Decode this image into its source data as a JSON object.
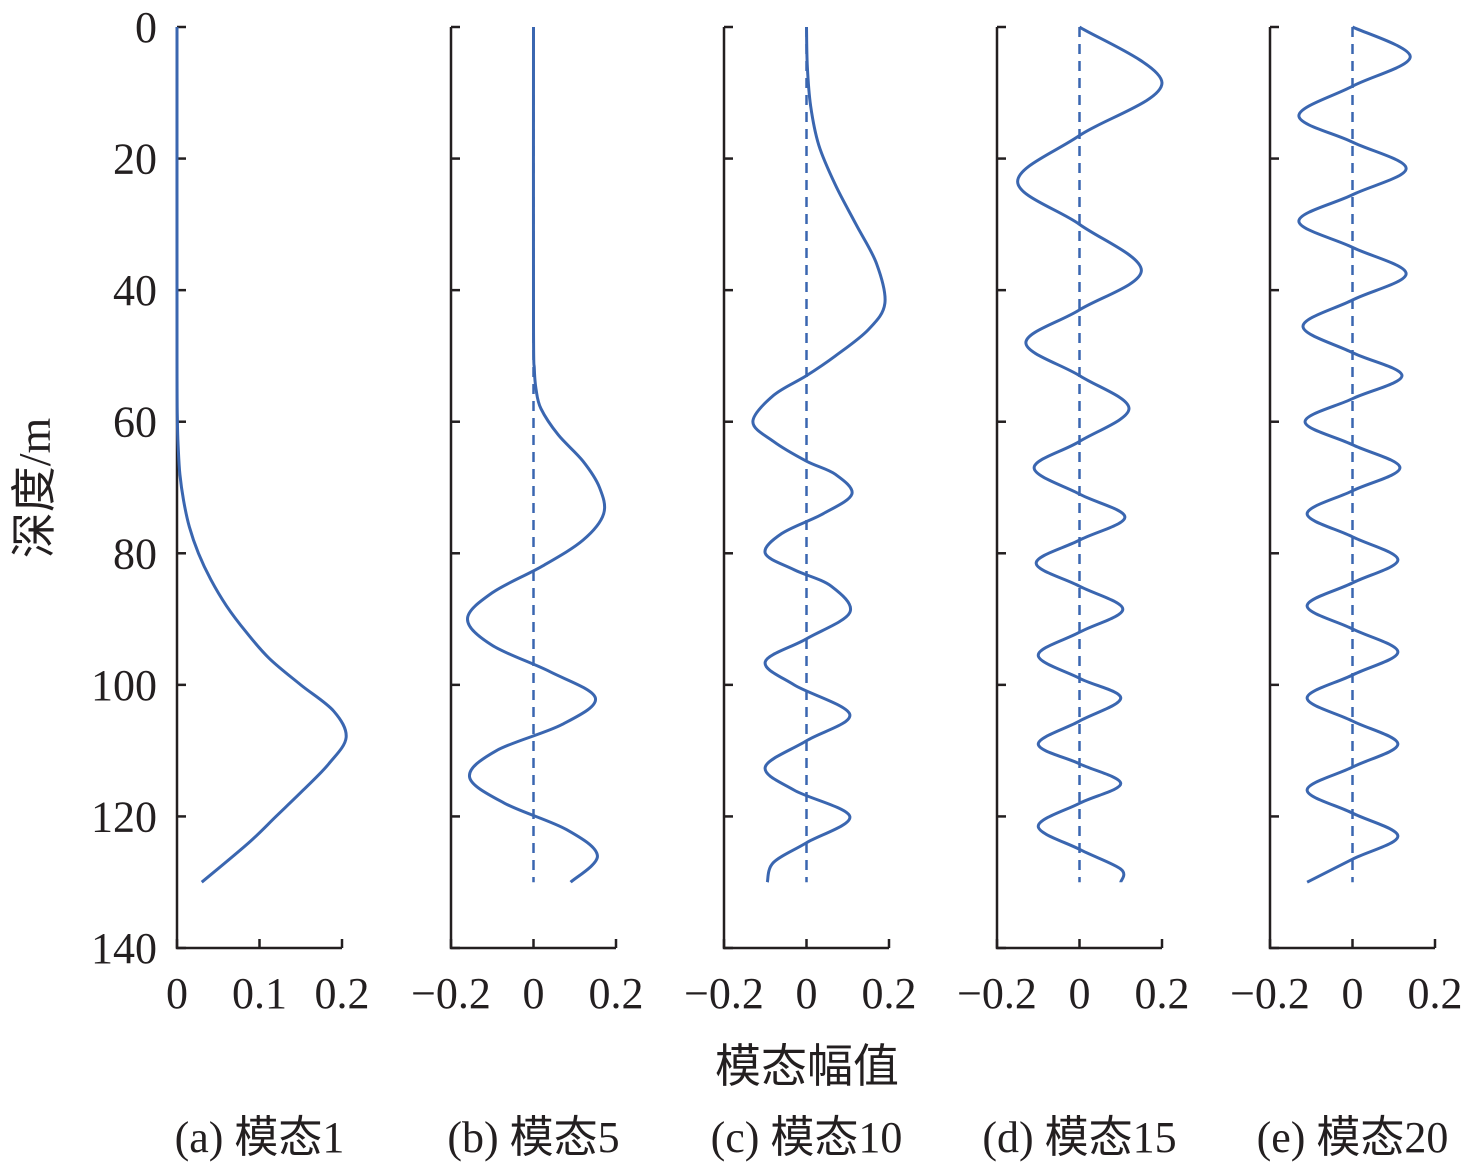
{
  "figure": {
    "ylabel": "深度/m",
    "xlabel": "模态幅值"
  },
  "chart_data": [
    {
      "type": "line",
      "caption": "(a) 模态1",
      "mode": 1,
      "xlim": [
        0,
        0.2
      ],
      "xticks": [
        "0",
        "0.1",
        "0.2"
      ],
      "ylim": [
        0,
        140
      ],
      "yticks": [
        "0",
        "20",
        "40",
        "60",
        "80",
        "100",
        "120",
        "140"
      ],
      "y_inverted": true,
      "zero_line": false,
      "series": [
        {
          "y": [
            0,
            50,
            60,
            64,
            68,
            72,
            76,
            80,
            84,
            88,
            92,
            96,
            100,
            104,
            108,
            112,
            116,
            120,
            124,
            130
          ],
          "x": [
            0,
            0,
            0.0005,
            0.0015,
            0.0035,
            0.008,
            0.015,
            0.026,
            0.041,
            0.06,
            0.084,
            0.112,
            0.15,
            0.19,
            0.205,
            0.184,
            0.153,
            0.12,
            0.087,
            0.03
          ]
        }
      ]
    },
    {
      "type": "line",
      "caption": "(b) 模态5",
      "mode": 5,
      "xlim": [
        -0.2,
        0.2
      ],
      "xticks": [
        "−0.2",
        "0",
        "0.2"
      ],
      "ylim": [
        0,
        140
      ],
      "y_inverted": true,
      "zero_line": true,
      "zero_line_range": [
        0,
        130
      ],
      "series": [
        {
          "y": [
            0,
            45,
            52,
            55,
            58,
            62,
            66,
            70,
            74,
            78,
            82,
            86,
            90,
            94,
            98,
            102,
            106,
            110,
            114,
            118,
            122,
            126,
            130
          ],
          "x": [
            0,
            0,
            0.002,
            0.006,
            0.018,
            0.06,
            0.12,
            0.16,
            0.17,
            0.12,
            0.02,
            -0.1,
            -0.16,
            -0.1,
            0.04,
            0.15,
            0.07,
            -0.09,
            -0.155,
            -0.07,
            0.08,
            0.155,
            0.09
          ]
        }
      ]
    },
    {
      "type": "line",
      "caption": "(c) 模态10",
      "mode": 10,
      "xlim": [
        -0.2,
        0.2
      ],
      "xticks": [
        "−0.2",
        "0",
        "0.2"
      ],
      "ylim": [
        0,
        140
      ],
      "y_inverted": true,
      "zero_line": true,
      "zero_line_range": [
        0,
        130
      ],
      "series": [
        {
          "y": [
            0,
            6,
            12,
            18,
            24,
            30,
            36,
            42,
            46,
            50,
            53,
            56,
            60,
            63,
            66,
            68,
            71,
            74,
            77,
            80,
            82.5,
            85,
            89,
            93,
            96.5,
            100,
            104.5,
            108.5,
            112.5,
            116,
            120,
            124,
            127,
            130
          ],
          "x": [
            0,
            0.002,
            0.01,
            0.03,
            0.07,
            0.12,
            0.17,
            0.19,
            0.15,
            0.07,
            0.0,
            -0.08,
            -0.13,
            -0.08,
            0.0,
            0.07,
            0.11,
            0.04,
            -0.06,
            -0.1,
            -0.03,
            0.06,
            0.105,
            0.0,
            -0.1,
            -0.03,
            0.105,
            0.0,
            -0.1,
            -0.03,
            0.105,
            0.0,
            -0.08,
            -0.095
          ]
        }
      ]
    },
    {
      "type": "line",
      "caption": "(d) 模态15",
      "mode": 15,
      "xlim": [
        -0.2,
        0.2
      ],
      "xticks": [
        "−0.2",
        "0",
        "0.2"
      ],
      "ylim": [
        0,
        140
      ],
      "y_inverted": true,
      "zero_line": true,
      "zero_line_range": [
        0,
        130
      ],
      "series": [
        {
          "y": [
            0,
            8.5,
            16.5,
            23.5,
            30,
            37,
            43,
            48,
            53,
            58,
            63,
            67,
            71,
            74.5,
            78,
            81.5,
            85,
            88.5,
            92,
            95.5,
            99,
            102,
            105.5,
            109,
            112,
            115,
            118,
            121.5,
            125,
            128,
            130
          ],
          "x": [
            0,
            0.2,
            0.0,
            -0.15,
            0.0,
            0.15,
            0.0,
            -0.13,
            0.0,
            0.12,
            0.0,
            -0.11,
            0.0,
            0.11,
            0.0,
            -0.105,
            0.0,
            0.105,
            0.0,
            -0.1,
            0.0,
            0.1,
            0.0,
            -0.1,
            0.0,
            0.1,
            0.0,
            -0.1,
            0.0,
            0.1,
            0.1
          ]
        }
      ]
    },
    {
      "type": "line",
      "caption": "(e) 模态20",
      "mode": 20,
      "xlim": [
        -0.2,
        0.2
      ],
      "xticks": [
        "−0.2",
        "0",
        "0.2"
      ],
      "ylim": [
        0,
        140
      ],
      "y_inverted": true,
      "zero_line": true,
      "zero_line_range": [
        0,
        130
      ],
      "series": [
        {
          "y": [
            0,
            4.5,
            9,
            13.5,
            17.5,
            21.5,
            25.5,
            29.5,
            33.5,
            37.5,
            41.5,
            45.5,
            49.5,
            53,
            56.5,
            60,
            63.5,
            67,
            70.5,
            74,
            77.5,
            81,
            84.5,
            88,
            91.5,
            95,
            98.5,
            102,
            105.5,
            109,
            112.5,
            116,
            119.5,
            123,
            126.5,
            130
          ],
          "x": [
            0,
            0.14,
            0.0,
            -0.13,
            0.0,
            0.13,
            0.0,
            -0.13,
            0.0,
            0.13,
            0.0,
            -0.12,
            0.0,
            0.12,
            0.0,
            -0.115,
            0.0,
            0.115,
            0.0,
            -0.11,
            0.0,
            0.11,
            0.0,
            -0.11,
            0.0,
            0.11,
            0.0,
            -0.11,
            0.0,
            0.11,
            0.0,
            -0.11,
            0.0,
            0.11,
            0.0,
            -0.11
          ]
        }
      ]
    }
  ]
}
